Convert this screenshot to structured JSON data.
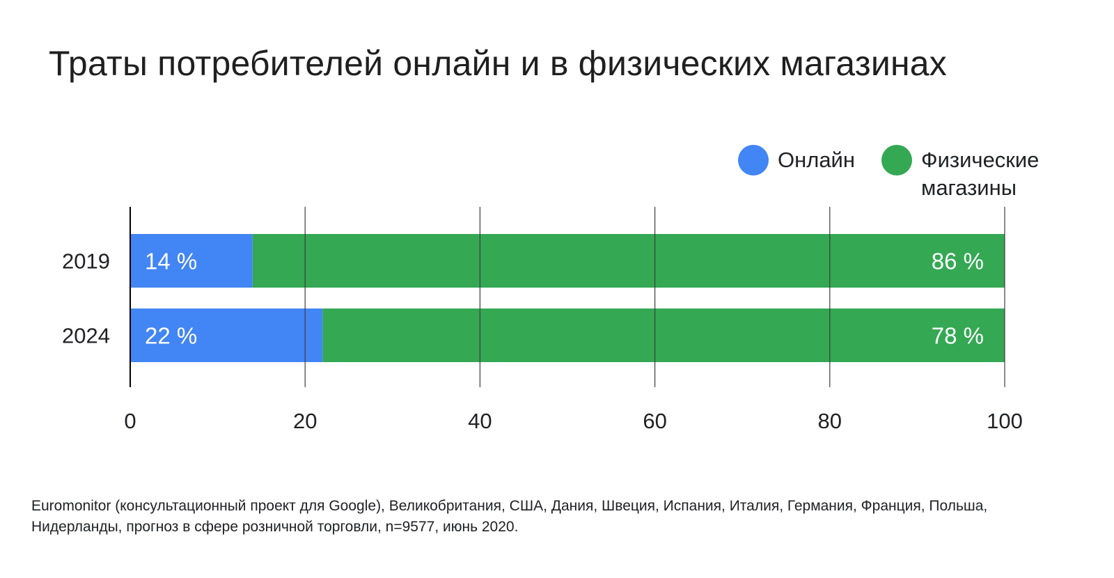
{
  "chart_data": {
    "type": "bar",
    "orientation": "horizontal",
    "stacked": true,
    "title": "Траты потребителей онлайн и в физических магазинах",
    "xlabel": "",
    "ylabel": "",
    "categories": [
      "2019",
      "2024"
    ],
    "series": [
      {
        "name": "Онлайн",
        "color": "#4285f4",
        "values": [
          14,
          22
        ],
        "labels": [
          "14 %",
          "22 %"
        ]
      },
      {
        "name": "Физические магазины",
        "color": "#34a853",
        "values": [
          86,
          78
        ],
        "labels": [
          "86 %",
          "78 %"
        ]
      }
    ],
    "xlim": [
      0,
      100
    ],
    "xticks": [
      0,
      20,
      40,
      60,
      80,
      100
    ],
    "xtick_labels": [
      "0",
      "20",
      "40",
      "60",
      "80",
      "100"
    ],
    "grid": true,
    "legend_position": "top-right"
  },
  "legend": {
    "online_label": "Онлайн",
    "stores_label": "Физические магазины",
    "online_color": "#4285f4",
    "stores_color": "#34a853"
  },
  "source_note": "Euromonitor (консультационный проект для Google), Великобритания, США, Дания, Швеция, Испания, Италия, Германия, Франция, Польша, Нидерланды, прогноз в сфере розничной торговли, n=9577, июнь 2020."
}
